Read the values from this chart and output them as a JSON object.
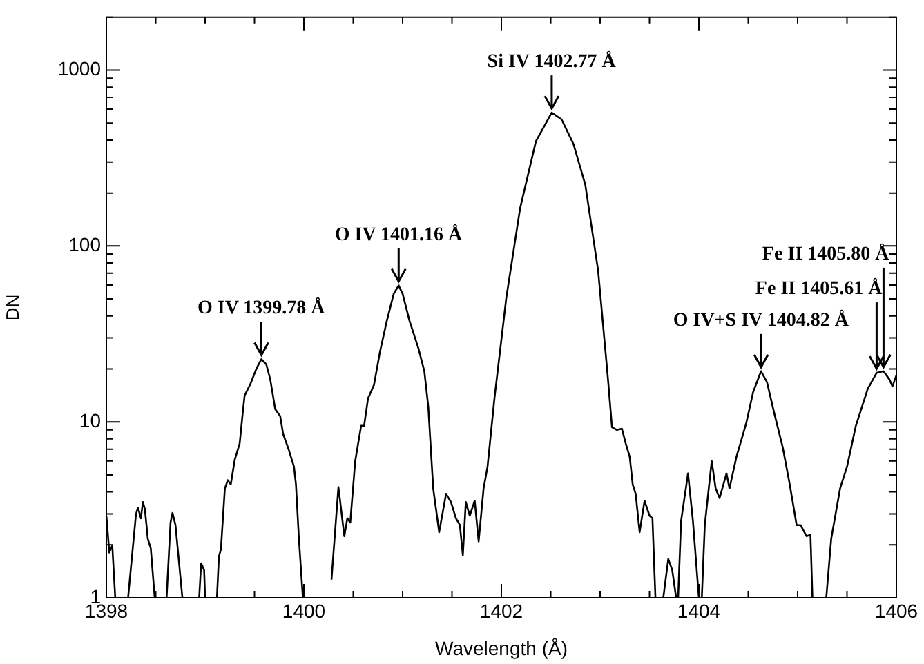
{
  "chart_data": {
    "type": "line",
    "xlabel": "Wavelength (Å)",
    "ylabel": "DN",
    "log": "y",
    "grid": false,
    "legend": false,
    "marker": "none",
    "line_style": "solid",
    "xlim": [
      1398,
      1406
    ],
    "xticks": [
      1398,
      {
        "value": 1398.5,
        "label": null
      },
      {
        "value": 1399,
        "label": null
      },
      {
        "value": 1399.5,
        "label": null
      },
      1400,
      {
        "value": 1400.5,
        "label": null
      },
      {
        "value": 1401,
        "label": null
      },
      {
        "value": 1401.5,
        "label": null
      },
      1402,
      {
        "value": 1402.5,
        "label": null
      },
      {
        "value": 1403,
        "label": null
      },
      {
        "value": 1403.5,
        "label": null
      },
      1404,
      {
        "value": 1404.5,
        "label": null
      },
      {
        "value": 1405,
        "label": null
      },
      {
        "value": 1405.5,
        "label": null
      },
      1406
    ],
    "ylim": [
      1,
      2000
    ],
    "yticks": [
      1,
      {
        "value": 2,
        "label": null
      },
      {
        "value": 3,
        "label": null
      },
      {
        "value": 4,
        "label": null
      },
      {
        "value": 5,
        "label": null
      },
      {
        "value": 6,
        "label": null
      },
      {
        "value": 7,
        "label": null
      },
      {
        "value": 8,
        "label": null
      },
      {
        "value": 9,
        "label": null
      },
      10,
      {
        "value": 20,
        "label": null
      },
      {
        "value": 30,
        "label": null
      },
      {
        "value": 40,
        "label": null
      },
      {
        "value": 50,
        "label": null
      },
      {
        "value": 60,
        "label": null
      },
      {
        "value": 70,
        "label": null
      },
      {
        "value": 80,
        "label": null
      },
      {
        "value": 90,
        "label": null
      },
      100,
      {
        "value": 200,
        "label": null
      },
      {
        "value": 300,
        "label": null
      },
      {
        "value": 400,
        "label": null
      },
      {
        "value": 500,
        "label": null
      },
      {
        "value": 600,
        "label": null
      },
      {
        "value": 700,
        "label": null
      },
      {
        "value": 800,
        "label": null
      },
      {
        "value": 900,
        "label": null
      },
      1000,
      {
        "value": 2000,
        "label": null
      }
    ],
    "series": [
      {
        "color": "#000000",
        "x": [
          1398.0,
          1398.03,
          1398.06,
          1398.09,
          1398.15,
          1398.22,
          1398.3,
          1398.32,
          1398.35,
          1398.37,
          1398.39,
          1398.42,
          1398.45,
          1398.49,
          1398.55,
          1398.61,
          1398.65,
          1398.67,
          1398.7,
          1398.77,
          1398.85,
          1398.94,
          1398.96,
          1398.99,
          1399.0,
          1399.06,
          1399.12,
          1399.14,
          1399.16,
          1399.2,
          1399.23,
          1399.26,
          1399.3,
          1399.35,
          1399.38,
          1399.4,
          1399.46,
          1399.52,
          1399.57,
          1399.62,
          1399.66,
          1399.71,
          1399.76,
          1399.79,
          1399.84,
          1399.9,
          1399.92,
          1399.95,
          1399.99,
          1400.1,
          1400.28,
          1400.35,
          1400.41,
          1400.44,
          1400.47,
          1400.52,
          1400.58,
          1400.61,
          1400.65,
          1400.71,
          1400.77,
          1400.84,
          1400.91,
          1400.96,
          1401.0,
          1401.07,
          1401.16,
          1401.22,
          1401.26,
          1401.31,
          1401.37,
          1401.44,
          1401.49,
          1401.54,
          1401.58,
          1401.61,
          1401.64,
          1401.68,
          1401.73,
          1401.77,
          1401.82,
          1401.86,
          1401.93,
          1402.05,
          1402.19,
          1402.35,
          1402.51,
          1402.61,
          1402.73,
          1402.85,
          1402.98,
          1403.08,
          1403.12,
          1403.17,
          1403.22,
          1403.26,
          1403.3,
          1403.33,
          1403.36,
          1403.4,
          1403.45,
          1403.5,
          1403.53,
          1403.56,
          1403.6,
          1403.64,
          1403.69,
          1403.73,
          1403.77,
          1403.78,
          1403.79,
          1403.82,
          1403.89,
          1403.94,
          1404.0,
          1404.01,
          1404.03,
          1404.06,
          1404.13,
          1404.17,
          1404.21,
          1404.28,
          1404.31,
          1404.38,
          1404.48,
          1404.55,
          1404.63,
          1404.69,
          1404.76,
          1404.85,
          1404.92,
          1404.99,
          1405.03,
          1405.09,
          1405.13,
          1405.15,
          1405.22,
          1405.29,
          1405.34,
          1405.43,
          1405.5,
          1405.59,
          1405.71,
          1405.8,
          1405.87,
          1405.93,
          1405.96,
          1406.0
        ],
        "values": [
          2.93,
          1.81,
          1.98,
          1,
          null,
          1,
          2.98,
          3.26,
          2.83,
          3.5,
          3.2,
          2.16,
          1.91,
          1,
          null,
          1,
          2.68,
          3.04,
          2.59,
          1,
          null,
          1,
          1.57,
          1.44,
          1,
          null,
          1,
          1.72,
          1.88,
          4.18,
          4.66,
          4.41,
          6.08,
          7.53,
          11.1,
          14.1,
          16.5,
          20.1,
          22.7,
          21.2,
          17.4,
          11.8,
          10.8,
          8.53,
          7.14,
          5.56,
          4.41,
          2.16,
          1,
          null,
          1.27,
          4.26,
          2.24,
          2.83,
          2.68,
          5.98,
          9.5,
          9.5,
          13.6,
          16.2,
          24.9,
          37.5,
          53.5,
          59.6,
          53.5,
          37.5,
          26.2,
          19.4,
          12.2,
          4.18,
          2.36,
          3.9,
          3.5,
          2.83,
          2.59,
          1.75,
          3.5,
          2.93,
          3.56,
          2.09,
          4.18,
          5.56,
          13.6,
          50.7,
          164,
          394,
          573,
          524,
          380,
          223,
          72.4,
          17.4,
          9.33,
          9,
          9.16,
          7.53,
          6.31,
          4.41,
          3.9,
          2.36,
          3.56,
          2.93,
          2.83,
          1,
          null,
          1,
          1.66,
          1.44,
          1,
          null,
          1,
          2.73,
          5.09,
          2.73,
          1,
          null,
          1,
          2.59,
          5.98,
          4.18,
          3.69,
          5.09,
          4.18,
          6.31,
          9.84,
          14.8,
          19.4,
          16.8,
          11.4,
          7.14,
          4.41,
          2.59,
          2.59,
          2.24,
          2.28,
          1,
          null,
          1,
          2.16,
          4.18,
          5.56,
          9.5,
          15.4,
          19,
          19.4,
          17.4,
          15.9,
          18.4
        ]
      }
    ],
    "annotations": [
      {
        "text": "O IV 1399.78 Å",
        "x": 1399.57,
        "y": 22.7
      },
      {
        "text": "O IV 1401.16 Å",
        "x": 1400.96,
        "y": 59.6
      },
      {
        "text": "Si IV 1402.77 Å",
        "x": 1402.51,
        "y": 573
      },
      {
        "text": "O IV+S IV 1404.82 Å",
        "x": 1404.63,
        "y": 19.4
      },
      {
        "text": "Fe II 1405.61 Å",
        "x": 1405.8,
        "y": 19
      },
      {
        "text": "Fe II 1405.80 Å",
        "x": 1405.87,
        "y": 19.4
      }
    ]
  }
}
